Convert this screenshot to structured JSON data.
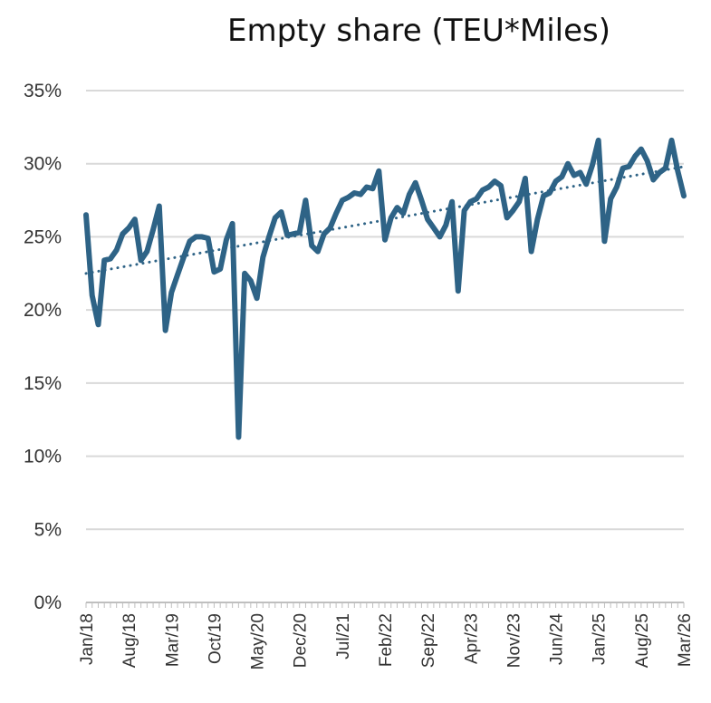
{
  "chart_data": {
    "type": "line",
    "title": "Empty share (TEU*Miles)",
    "xlabel": "",
    "ylabel": "",
    "ylim": [
      0,
      0.35
    ],
    "y_ticks": [
      "0%",
      "5%",
      "10%",
      "15%",
      "20%",
      "25%",
      "30%",
      "35%"
    ],
    "x_ticks": [
      "Jan/18",
      "Aug/18",
      "Mar/19",
      "Oct/19",
      "May/20",
      "Dec/20",
      "Jul/21",
      "Feb/22",
      "Sep/22",
      "Apr/23",
      "Nov/23",
      "Jun/24",
      "Jan/25",
      "Aug/25",
      "Mar/26"
    ],
    "grid": true,
    "legend": "none",
    "colors": {
      "series": "#2e6386",
      "trend": "#2e6386",
      "grid": "#d9d9d9",
      "axis": "#bfbfbf"
    },
    "series": [
      {
        "style": "solid",
        "x": [
          "Jan/18",
          "Feb/18",
          "Mar/18",
          "Apr/18",
          "May/18",
          "Jun/18",
          "Jul/18",
          "Aug/18",
          "Sep/18",
          "Oct/18",
          "Nov/18",
          "Dec/18",
          "Jan/19",
          "Feb/19",
          "Mar/19",
          "Apr/19",
          "May/19",
          "Jun/19",
          "Jul/19",
          "Aug/19",
          "Sep/19",
          "Oct/19",
          "Nov/19",
          "Dec/19",
          "Jan/20",
          "Feb/20",
          "Mar/20",
          "Apr/20",
          "May/20",
          "Jun/20",
          "Jul/20",
          "Aug/20",
          "Sep/20",
          "Oct/20",
          "Nov/20",
          "Dec/20",
          "Jan/21",
          "Feb/21",
          "Mar/21",
          "Apr/21",
          "May/21",
          "Jun/21",
          "Jul/21",
          "Aug/21",
          "Sep/21",
          "Oct/21",
          "Nov/21",
          "Dec/21",
          "Jan/22",
          "Feb/22",
          "Mar/22",
          "Apr/22",
          "May/22",
          "Jun/22",
          "Jul/22",
          "Aug/22",
          "Sep/22",
          "Oct/22",
          "Nov/22",
          "Dec/22",
          "Jan/23",
          "Feb/23",
          "Mar/23",
          "Apr/23",
          "May/23",
          "Jun/23",
          "Jul/23",
          "Aug/23",
          "Sep/23",
          "Oct/23",
          "Nov/23",
          "Dec/23",
          "Jan/24",
          "Feb/24",
          "Mar/24",
          "Apr/24",
          "May/24",
          "Jun/24",
          "Jul/24",
          "Aug/24",
          "Sep/24",
          "Oct/24",
          "Nov/24",
          "Dec/24",
          "Jan/25",
          "Feb/25",
          "Mar/25",
          "Apr/25",
          "May/25",
          "Jun/25",
          "Jul/25",
          "Aug/25",
          "Sep/25",
          "Oct/25",
          "Nov/25",
          "Dec/25",
          "Jan/26",
          "Feb/26",
          "Mar/26"
        ],
        "values": [
          0.265,
          0.21,
          0.19,
          0.234,
          0.235,
          0.241,
          0.252,
          0.256,
          0.262,
          0.234,
          0.24,
          0.255,
          0.271,
          0.186,
          0.212,
          0.224,
          0.236,
          0.247,
          0.25,
          0.25,
          0.249,
          0.226,
          0.228,
          0.248,
          0.259,
          0.113,
          0.225,
          0.22,
          0.208,
          0.236,
          0.25,
          0.263,
          0.267,
          0.251,
          0.252,
          0.253,
          0.275,
          0.244,
          0.24,
          0.252,
          0.256,
          0.266,
          0.275,
          0.277,
          0.28,
          0.279,
          0.284,
          0.283,
          0.295,
          0.248,
          0.263,
          0.27,
          0.266,
          0.279,
          0.287,
          0.275,
          0.262,
          0.256,
          0.25,
          0.258,
          0.274,
          0.213,
          0.268,
          0.274,
          0.276,
          0.282,
          0.284,
          0.288,
          0.285,
          0.263,
          0.268,
          0.274,
          0.29,
          0.24,
          0.262,
          0.278,
          0.28,
          0.288,
          0.291,
          0.3,
          0.292,
          0.294,
          0.286,
          0.299,
          0.316,
          0.247,
          0.276,
          0.284,
          0.297,
          0.298,
          0.305,
          0.31,
          0.302,
          0.289,
          0.294,
          0.297,
          0.316,
          0.295,
          0.278
        ]
      },
      {
        "style": "dotted",
        "x": [
          "Jan/18",
          "Mar/26"
        ],
        "values": [
          0.225,
          0.298
        ]
      }
    ]
  }
}
